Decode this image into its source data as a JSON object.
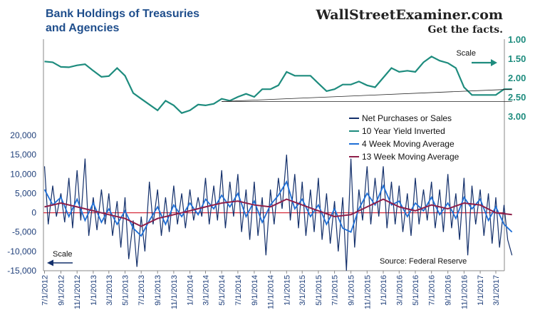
{
  "chart_data": {
    "type": "line",
    "title_line1": "Bank Holdings of Treasuries",
    "title_line2": "and Agencies",
    "brand": "WallStreetExaminer.com",
    "tagline": "Get the facts.",
    "source": "Source: Federal Reserve",
    "left_scale_label": "Scale",
    "right_scale_label": "Scale",
    "left_axis": {
      "min": -15000,
      "max": 20000,
      "ticks": [
        "20,000",
        "15,000",
        "10,000",
        "5,000",
        "0",
        "-5,000",
        "-10,000",
        "-15,000"
      ]
    },
    "right_axis": {
      "min": 1.0,
      "max": 3.0,
      "inverted": true,
      "ticks": [
        "1.00",
        "1.50",
        "2.00",
        "2.50",
        "3.00"
      ]
    },
    "x_ticks": [
      "7/1/2012",
      "9/1/2012",
      "11/1/2012",
      "1/1/2013",
      "3/1/2013",
      "5/1/2013",
      "7/1/2013",
      "9/1/2013",
      "11/1/2013",
      "1/1/2014",
      "3/1/2014",
      "5/1/2014",
      "7/1/2014",
      "9/1/2014",
      "11/1/2014",
      "1/1/2015",
      "3/1/2015",
      "5/1/2015",
      "7/1/2015",
      "9/1/2015",
      "11/1/2015",
      "1/1/2016",
      "3/1/2016",
      "5/1/2016",
      "7/1/2016",
      "9/1/2016",
      "11/1/2016",
      "1/1/2017",
      "3/1/2017"
    ],
    "legend": [
      {
        "name": "Net Purchases or Sales",
        "color": "#14306b"
      },
      {
        "name": "10 Year Yield Inverted",
        "color": "#1e8c7e"
      },
      {
        "name": "4 Week Moving Average",
        "color": "#1f6fd6"
      },
      {
        "name": "13 Week Moving Average",
        "color": "#8e1f4a"
      }
    ],
    "yield_series": {
      "name": "10 Year Yield Inverted",
      "color": "#1e8c7e",
      "points": [
        [
          "7/1/2012",
          1.58
        ],
        [
          "8/1/2012",
          1.6
        ],
        [
          "9/1/2012",
          1.72
        ],
        [
          "10/1/2012",
          1.73
        ],
        [
          "11/1/2012",
          1.68
        ],
        [
          "12/1/2012",
          1.65
        ],
        [
          "1/1/2013",
          1.82
        ],
        [
          "2/1/2013",
          1.98
        ],
        [
          "3/1/2013",
          1.96
        ],
        [
          "4/1/2013",
          1.75
        ],
        [
          "5/1/2013",
          1.95
        ],
        [
          "6/1/2013",
          2.4
        ],
        [
          "7/1/2013",
          2.55
        ],
        [
          "8/1/2013",
          2.7
        ],
        [
          "9/1/2013",
          2.85
        ],
        [
          "10/1/2013",
          2.6
        ],
        [
          "11/1/2013",
          2.72
        ],
        [
          "12/1/2013",
          2.92
        ],
        [
          "1/1/2014",
          2.85
        ],
        [
          "2/1/2014",
          2.7
        ],
        [
          "3/1/2014",
          2.72
        ],
        [
          "4/1/2014",
          2.68
        ],
        [
          "5/1/2014",
          2.55
        ],
        [
          "6/1/2014",
          2.6
        ],
        [
          "7/1/2014",
          2.5
        ],
        [
          "8/1/2014",
          2.42
        ],
        [
          "9/1/2014",
          2.5
        ],
        [
          "10/1/2014",
          2.3
        ],
        [
          "11/1/2014",
          2.3
        ],
        [
          "12/1/2014",
          2.2
        ],
        [
          "1/1/2015",
          1.85
        ],
        [
          "2/1/2015",
          1.95
        ],
        [
          "3/1/2015",
          1.95
        ],
        [
          "4/1/2015",
          1.95
        ],
        [
          "5/1/2015",
          2.15
        ],
        [
          "6/1/2015",
          2.35
        ],
        [
          "7/1/2015",
          2.3
        ],
        [
          "8/1/2015",
          2.18
        ],
        [
          "9/1/2015",
          2.18
        ],
        [
          "10/1/2015",
          2.1
        ],
        [
          "11/1/2015",
          2.2
        ],
        [
          "12/1/2015",
          2.25
        ],
        [
          "1/1/2016",
          2.0
        ],
        [
          "2/1/2016",
          1.75
        ],
        [
          "3/1/2016",
          1.85
        ],
        [
          "4/1/2016",
          1.82
        ],
        [
          "5/1/2016",
          1.85
        ],
        [
          "6/1/2016",
          1.6
        ],
        [
          "7/1/2016",
          1.45
        ],
        [
          "8/1/2016",
          1.56
        ],
        [
          "9/1/2016",
          1.62
        ],
        [
          "10/1/2016",
          1.75
        ],
        [
          "11/1/2016",
          2.25
        ],
        [
          "12/1/2016",
          2.45
        ],
        [
          "1/1/2017",
          2.45
        ],
        [
          "2/1/2017",
          2.45
        ],
        [
          "3/1/2017",
          2.45
        ],
        [
          "4/1/2017",
          2.3
        ],
        [
          "5/1/2017",
          2.3
        ]
      ]
    },
    "trendlines": [
      {
        "from": [
          "5/1/2014",
          2.62
        ],
        "to": [
          "5/1/2017",
          2.3
        ]
      },
      {
        "from": [
          "5/1/2014",
          2.62
        ],
        "to": [
          "5/1/2017",
          2.62
        ]
      }
    ],
    "ma13_series": {
      "name": "13 Week Moving Average",
      "color": "#8e1f4a",
      "points": [
        [
          "7/1/2012",
          1500
        ],
        [
          "9/1/2012",
          2500
        ],
        [
          "11/1/2012",
          1500
        ],
        [
          "1/1/2013",
          500
        ],
        [
          "3/1/2013",
          -500
        ],
        [
          "5/1/2013",
          -1500
        ],
        [
          "7/1/2013",
          -3500
        ],
        [
          "9/1/2013",
          -1500
        ],
        [
          "11/1/2013",
          -500
        ],
        [
          "1/1/2014",
          500
        ],
        [
          "3/1/2014",
          1500
        ],
        [
          "5/1/2014",
          2500
        ],
        [
          "7/1/2014",
          3000
        ],
        [
          "9/1/2014",
          2000
        ],
        [
          "11/1/2014",
          1500
        ],
        [
          "1/1/2015",
          3500
        ],
        [
          "3/1/2015",
          2000
        ],
        [
          "5/1/2015",
          500
        ],
        [
          "7/1/2015",
          -1000
        ],
        [
          "9/1/2015",
          -500
        ],
        [
          "11/1/2015",
          1500
        ],
        [
          "1/1/2016",
          3500
        ],
        [
          "3/1/2016",
          1500
        ],
        [
          "5/1/2016",
          500
        ],
        [
          "7/1/2016",
          2000
        ],
        [
          "9/1/2016",
          1000
        ],
        [
          "11/1/2016",
          2500
        ],
        [
          "1/1/2017",
          2000
        ],
        [
          "3/1/2017",
          0
        ],
        [
          "5/1/2017",
          -500
        ]
      ]
    },
    "ma4_series": {
      "name": "4 Week Moving Average",
      "color": "#1f6fd6",
      "points": [
        [
          "7/1/2012",
          6000
        ],
        [
          "8/1/2012",
          2000
        ],
        [
          "9/1/2012",
          4000
        ],
        [
          "10/1/2012",
          -1000
        ],
        [
          "11/1/2012",
          3500
        ],
        [
          "12/1/2012",
          -2000
        ],
        [
          "1/1/2013",
          2500
        ],
        [
          "2/1/2013",
          -2500
        ],
        [
          "3/1/2013",
          1000
        ],
        [
          "4/1/2013",
          -3000
        ],
        [
          "5/1/2013",
          500
        ],
        [
          "6/1/2013",
          -4000
        ],
        [
          "7/1/2013",
          -6000
        ],
        [
          "8/1/2013",
          -2000
        ],
        [
          "9/1/2013",
          1500
        ],
        [
          "10/1/2013",
          -3000
        ],
        [
          "11/1/2013",
          2000
        ],
        [
          "12/1/2013",
          -1000
        ],
        [
          "1/1/2014",
          2500
        ],
        [
          "2/1/2014",
          -500
        ],
        [
          "3/1/2014",
          3500
        ],
        [
          "4/1/2014",
          1000
        ],
        [
          "5/1/2014",
          4500
        ],
        [
          "6/1/2014",
          1500
        ],
        [
          "7/1/2014",
          5000
        ],
        [
          "8/1/2014",
          -1000
        ],
        [
          "9/1/2014",
          3000
        ],
        [
          "10/1/2014",
          -2500
        ],
        [
          "11/1/2014",
          2000
        ],
        [
          "12/1/2014",
          4500
        ],
        [
          "1/1/2015",
          8000
        ],
        [
          "2/1/2015",
          1000
        ],
        [
          "3/1/2015",
          3500
        ],
        [
          "4/1/2015",
          -1000
        ],
        [
          "5/1/2015",
          2000
        ],
        [
          "6/1/2015",
          -3000
        ],
        [
          "7/1/2015",
          1000
        ],
        [
          "8/1/2015",
          -4000
        ],
        [
          "9/1/2015",
          -5000
        ],
        [
          "10/1/2015",
          1000
        ],
        [
          "11/1/2015",
          5000
        ],
        [
          "12/1/2015",
          2000
        ],
        [
          "1/1/2016",
          7000
        ],
        [
          "2/1/2016",
          2000
        ],
        [
          "3/1/2016",
          3000
        ],
        [
          "4/1/2016",
          -1000
        ],
        [
          "5/1/2016",
          2500
        ],
        [
          "6/1/2016",
          500
        ],
        [
          "7/1/2016",
          4000
        ],
        [
          "8/1/2016",
          -500
        ],
        [
          "9/1/2016",
          2500
        ],
        [
          "10/1/2016",
          -1500
        ],
        [
          "11/1/2016",
          4000
        ],
        [
          "12/1/2016",
          1000
        ],
        [
          "1/1/2017",
          3500
        ],
        [
          "2/1/2017",
          -2000
        ],
        [
          "3/1/2017",
          1500
        ],
        [
          "4/1/2017",
          -3000
        ],
        [
          "5/1/2017",
          -5000
        ]
      ]
    },
    "net_series": {
      "name": "Net Purchases or Sales",
      "color": "#14306b",
      "points": [
        [
          "7/1/2012",
          12000
        ],
        [
          "7/15/2012",
          -3000
        ],
        [
          "8/1/2012",
          7000
        ],
        [
          "8/15/2012",
          -1000
        ],
        [
          "9/1/2012",
          5000
        ],
        [
          "9/15/2012",
          -2500
        ],
        [
          "10/1/2012",
          9000
        ],
        [
          "10/15/2012",
          -4000
        ],
        [
          "11/1/2012",
          11000
        ],
        [
          "11/15/2012",
          -2000
        ],
        [
          "12/1/2012",
          14000
        ],
        [
          "12/15/2012",
          -6000
        ],
        [
          "1/1/2013",
          4000
        ],
        [
          "1/15/2013",
          -4500
        ],
        [
          "2/1/2013",
          6000
        ],
        [
          "2/15/2013",
          -3000
        ],
        [
          "3/1/2013",
          5000
        ],
        [
          "3/15/2013",
          -6000
        ],
        [
          "4/1/2013",
          3000
        ],
        [
          "4/15/2013",
          -9000
        ],
        [
          "5/1/2013",
          4000
        ],
        [
          "5/15/2013",
          -12000
        ],
        [
          "6/1/2013",
          -2000
        ],
        [
          "6/15/2013",
          -14000
        ],
        [
          "7/1/2013",
          -1000
        ],
        [
          "7/15/2013",
          -10000
        ],
        [
          "8/1/2013",
          8000
        ],
        [
          "8/15/2013",
          -3000
        ],
        [
          "9/1/2013",
          6000
        ],
        [
          "9/15/2013",
          -6000
        ],
        [
          "10/1/2013",
          4000
        ],
        [
          "10/15/2013",
          -5000
        ],
        [
          "11/1/2013",
          7000
        ],
        [
          "11/15/2013",
          -3000
        ],
        [
          "12/1/2013",
          5000
        ],
        [
          "12/15/2013",
          -4000
        ],
        [
          "1/1/2014",
          6000
        ],
        [
          "1/15/2014",
          -2000
        ],
        [
          "2/1/2014",
          4000
        ],
        [
          "2/15/2014",
          -1000
        ],
        [
          "3/1/2014",
          9000
        ],
        [
          "3/15/2014",
          -3000
        ],
        [
          "4/1/2014",
          7000
        ],
        [
          "4/15/2014",
          -2000
        ],
        [
          "5/1/2014",
          11000
        ],
        [
          "5/15/2014",
          -4000
        ],
        [
          "6/1/2014",
          8000
        ],
        [
          "6/15/2014",
          -1000
        ],
        [
          "7/1/2014",
          10000
        ],
        [
          "7/15/2014",
          -5000
        ],
        [
          "8/1/2014",
          6000
        ],
        [
          "8/15/2014",
          -7000
        ],
        [
          "9/1/2014",
          8000
        ],
        [
          "9/15/2014",
          -6000
        ],
        [
          "10/1/2014",
          4000
        ],
        [
          "10/15/2014",
          -11000
        ],
        [
          "11/1/2014",
          6000
        ],
        [
          "11/15/2014",
          -3000
        ],
        [
          "12/1/2014",
          9000
        ],
        [
          "12/15/2014",
          1000
        ],
        [
          "1/1/2015",
          15000
        ],
        [
          "1/15/2015",
          -2000
        ],
        [
          "2/1/2015",
          10000
        ],
        [
          "2/15/2015",
          -4000
        ],
        [
          "3/1/2015",
          8000
        ],
        [
          "3/15/2015",
          -6000
        ],
        [
          "4/1/2015",
          6000
        ],
        [
          "4/15/2015",
          -5000
        ],
        [
          "5/1/2015",
          9000
        ],
        [
          "5/15/2015",
          -7000
        ],
        [
          "6/1/2015",
          5000
        ],
        [
          "6/15/2015",
          -8000
        ],
        [
          "7/1/2015",
          3000
        ],
        [
          "7/15/2015",
          -10000
        ],
        [
          "8/1/2015",
          4000
        ],
        [
          "8/15/2015",
          -15000
        ],
        [
          "9/1/2015",
          14000
        ],
        [
          "9/15/2015",
          -9000
        ],
        [
          "10/1/2015",
          6000
        ],
        [
          "10/15/2015",
          -2000
        ],
        [
          "11/1/2015",
          12000
        ],
        [
          "11/15/2015",
          -3000
        ],
        [
          "12/1/2015",
          9000
        ],
        [
          "12/15/2015",
          -1000
        ],
        [
          "1/1/2016",
          12000
        ],
        [
          "1/15/2016",
          -4000
        ],
        [
          "2/1/2016",
          8000
        ],
        [
          "2/15/2016",
          -3000
        ],
        [
          "3/1/2016",
          7000
        ],
        [
          "3/15/2016",
          -5000
        ],
        [
          "4/1/2016",
          5000
        ],
        [
          "4/15/2016",
          -6000
        ],
        [
          "5/1/2016",
          9000
        ],
        [
          "5/15/2016",
          -3000
        ],
        [
          "6/1/2016",
          6000
        ],
        [
          "6/15/2016",
          -2000
        ],
        [
          "7/1/2016",
          8000
        ],
        [
          "7/15/2016",
          -4000
        ],
        [
          "8/1/2016",
          6000
        ],
        [
          "8/15/2016",
          -5000
        ],
        [
          "9/1/2016",
          10000
        ],
        [
          "9/15/2016",
          -4000
        ],
        [
          "10/1/2016",
          5000
        ],
        [
          "10/15/2016",
          -7000
        ],
        [
          "11/1/2016",
          9000
        ],
        [
          "11/15/2016",
          -11000
        ],
        [
          "12/1/2016",
          7000
        ],
        [
          "12/15/2016",
          -3000
        ],
        [
          "1/1/2017",
          6000
        ],
        [
          "1/15/2017",
          -6000
        ],
        [
          "2/1/2017",
          5000
        ],
        [
          "2/15/2017",
          -8000
        ],
        [
          "3/1/2017",
          4000
        ],
        [
          "3/15/2017",
          -9000
        ],
        [
          "4/1/2017",
          2000
        ],
        [
          "4/15/2017",
          -7000
        ],
        [
          "5/1/2017",
          -11000
        ]
      ]
    }
  }
}
